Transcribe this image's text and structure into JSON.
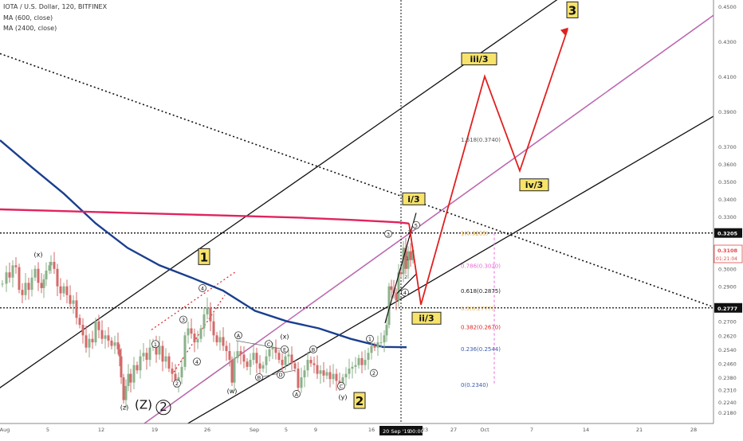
{
  "header": {
    "symbol_line": "IOTA / U.S. Dollar, 120, BITFINEX",
    "ma1": "MA (600, close)",
    "ma2": "MA (2400, close)"
  },
  "colors": {
    "ma600": "#1a3f8f",
    "ma2400": "#e0245e",
    "projection": "#e02020",
    "candle_up": "#8ab18a",
    "candle_down": "#d36a6a",
    "fib_pink": "#e86ad6",
    "label_bg": "#f7e36a"
  },
  "chart_data": {
    "type": "candlestick",
    "title": "IOTA / U.S. Dollar, 120, BITFINEX",
    "ylim": [
      0.214,
      0.457
    ],
    "y_ticks": [
      "0.4500",
      "0.4300",
      "0.4100",
      "0.3900",
      "0.3700",
      "0.3600",
      "0.3500",
      "0.3400",
      "0.3300",
      "0.3205",
      "0.3108",
      "0.3000",
      "0.2900",
      "0.2777",
      "0.2700",
      "0.2620",
      "0.2540",
      "0.2460",
      "0.2380",
      "0.2310",
      "0.2240",
      "0.2180"
    ],
    "x_ticks": [
      "Aug",
      "5",
      "12",
      "19",
      "26",
      "Sep",
      "5",
      "9",
      "16",
      "20 Sep '19",
      "00:00",
      "23",
      "27",
      "Oct",
      "7",
      "14",
      "21",
      "28"
    ],
    "price_labels": {
      "resistance": "0.3205",
      "current": "0.3108",
      "countdown": "01:21:04",
      "support": "0.2777"
    },
    "price_path": [
      [
        3,
        0.2915
      ],
      [
        8,
        0.298
      ],
      [
        12,
        0.295
      ],
      [
        16,
        0.302
      ],
      [
        20,
        0.301
      ],
      [
        24,
        0.288
      ],
      [
        28,
        0.285
      ],
      [
        32,
        0.292
      ],
      [
        36,
        0.288
      ],
      [
        40,
        0.295
      ],
      [
        44,
        0.3
      ],
      [
        48,
        0.292
      ],
      [
        52,
        0.289
      ],
      [
        55,
        0.294
      ],
      [
        58,
        0.299
      ],
      [
        62,
        0.302
      ],
      [
        64,
        0.304
      ],
      [
        68,
        0.3
      ],
      [
        72,
        0.29
      ],
      [
        76,
        0.286
      ],
      [
        80,
        0.29
      ],
      [
        84,
        0.285
      ],
      [
        88,
        0.28
      ],
      [
        92,
        0.282
      ],
      [
        96,
        0.272
      ],
      [
        100,
        0.268
      ],
      [
        104,
        0.262
      ],
      [
        108,
        0.255
      ],
      [
        112,
        0.26
      ],
      [
        116,
        0.258
      ],
      [
        120,
        0.27
      ],
      [
        124,
        0.265
      ],
      [
        128,
        0.26
      ],
      [
        132,
        0.262
      ],
      [
        136,
        0.259
      ],
      [
        140,
        0.256
      ],
      [
        144,
        0.258
      ],
      [
        148,
        0.254
      ],
      [
        150,
        0.25
      ],
      [
        152,
        0.238
      ],
      [
        155,
        0.225
      ],
      [
        158,
        0.233
      ],
      [
        161,
        0.24
      ],
      [
        164,
        0.235
      ],
      [
        168,
        0.245
      ],
      [
        172,
        0.242
      ],
      [
        176,
        0.25
      ],
      [
        180,
        0.252
      ],
      [
        184,
        0.248
      ],
      [
        188,
        0.255
      ],
      [
        192,
        0.258
      ],
      [
        196,
        0.251
      ],
      [
        200,
        0.256
      ],
      [
        204,
        0.247
      ],
      [
        208,
        0.25
      ],
      [
        212,
        0.243
      ],
      [
        216,
        0.24
      ],
      [
        220,
        0.235
      ],
      [
        224,
        0.238
      ],
      [
        228,
        0.244
      ],
      [
        232,
        0.262
      ],
      [
        236,
        0.266
      ],
      [
        240,
        0.263
      ],
      [
        244,
        0.258
      ],
      [
        248,
        0.26
      ],
      [
        252,
        0.266
      ],
      [
        256,
        0.274
      ],
      [
        260,
        0.278
      ],
      [
        264,
        0.27
      ],
      [
        268,
        0.262
      ],
      [
        272,
        0.258
      ],
      [
        276,
        0.261
      ],
      [
        280,
        0.256
      ],
      [
        284,
        0.253
      ],
      [
        288,
        0.248
      ],
      [
        291,
        0.235
      ],
      [
        294,
        0.249
      ],
      [
        298,
        0.253
      ],
      [
        302,
        0.251
      ],
      [
        306,
        0.247
      ],
      [
        310,
        0.244
      ],
      [
        314,
        0.248
      ],
      [
        318,
        0.252
      ],
      [
        322,
        0.246
      ],
      [
        326,
        0.243
      ],
      [
        330,
        0.245
      ],
      [
        334,
        0.25
      ],
      [
        338,
        0.254
      ],
      [
        342,
        0.255
      ],
      [
        346,
        0.252
      ],
      [
        350,
        0.248
      ],
      [
        354,
        0.245
      ],
      [
        358,
        0.25
      ],
      [
        362,
        0.251
      ],
      [
        366,
        0.246
      ],
      [
        370,
        0.243
      ],
      [
        374,
        0.232
      ],
      [
        378,
        0.238
      ],
      [
        382,
        0.242
      ],
      [
        386,
        0.248
      ],
      [
        390,
        0.246
      ],
      [
        394,
        0.245
      ],
      [
        398,
        0.24
      ],
      [
        402,
        0.242
      ],
      [
        406,
        0.239
      ],
      [
        410,
        0.241
      ],
      [
        414,
        0.237
      ],
      [
        418,
        0.24
      ],
      [
        422,
        0.236
      ],
      [
        426,
        0.234
      ],
      [
        430,
        0.238
      ],
      [
        434,
        0.24
      ],
      [
        438,
        0.243
      ],
      [
        442,
        0.244
      ],
      [
        446,
        0.245
      ],
      [
        450,
        0.249
      ],
      [
        454,
        0.245
      ],
      [
        458,
        0.248
      ],
      [
        462,
        0.252
      ],
      [
        466,
        0.256
      ],
      [
        470,
        0.255
      ],
      [
        474,
        0.258
      ],
      [
        478,
        0.258
      ],
      [
        482,
        0.262
      ],
      [
        485,
        0.268
      ],
      [
        488,
        0.29
      ],
      [
        491,
        0.288
      ],
      [
        494,
        0.286
      ],
      [
        497,
        0.282
      ],
      [
        500,
        0.298
      ],
      [
        503,
        0.297
      ],
      [
        506,
        0.312
      ],
      [
        509,
        0.3
      ],
      [
        512,
        0.31
      ],
      [
        515,
        0.305
      ],
      [
        518,
        0.3108
      ]
    ],
    "series": [
      {
        "name": "MA (600, close)",
        "points": [
          [
            0,
            0.3735
          ],
          [
            40,
            0.358
          ],
          [
            80,
            0.343
          ],
          [
            120,
            0.326
          ],
          [
            160,
            0.312
          ],
          [
            200,
            0.302
          ],
          [
            240,
            0.295
          ],
          [
            280,
            0.2875
          ],
          [
            320,
            0.276
          ],
          [
            360,
            0.27
          ],
          [
            400,
            0.266
          ],
          [
            440,
            0.26
          ],
          [
            480,
            0.2554
          ],
          [
            510,
            0.2552
          ]
        ]
      },
      {
        "name": "MA (2400, close)",
        "points": [
          [
            0,
            0.334
          ],
          [
            80,
            0.333
          ],
          [
            160,
            0.332
          ],
          [
            240,
            0.331
          ],
          [
            320,
            0.33
          ],
          [
            380,
            0.3292
          ],
          [
            440,
            0.328
          ],
          [
            500,
            0.3266
          ],
          [
            513,
            0.3259
          ]
        ]
      }
    ],
    "projection_path": [
      [
        513,
        0.326
      ],
      [
        528,
        0.2795
      ],
      [
        608,
        0.41
      ],
      [
        652,
        0.356
      ],
      [
        712,
        0.437
      ]
    ],
    "trendlines": [
      {
        "x1": -5,
        "y1": 0.2305,
        "x2": 712,
        "y2": 0.458
      },
      {
        "x1": 222,
        "y1": 0.208,
        "x2": 898,
        "y2": 0.388
      },
      {
        "x1": 176,
        "y1": 0.21,
        "x2": 932,
        "y2": 0.457
      }
    ],
    "dotted_lines": [
      {
        "x1": 0,
        "y1": 0.423,
        "x2": 898,
        "y2": 0.2777
      },
      {
        "x1": 190,
        "y1": 0.2652,
        "x2": 296,
        "y2": 0.2985
      },
      {
        "x1": 218,
        "y1": 0.241,
        "x2": 282,
        "y2": 0.285
      }
    ],
    "horizontal_levels": [
      0.3205,
      0.2777
    ],
    "fib_levels": [
      {
        "label": "1.618(0.3740)",
        "value": 0.374,
        "color": "#555555"
      },
      {
        "label": "1(0.3205)",
        "value": 0.3205,
        "color": "#e0a020"
      },
      {
        "label": "0.786(0.3020)",
        "value": 0.302,
        "color": "#e86ad6"
      },
      {
        "label": "0.618(0.2875)",
        "value": 0.2875,
        "color": "#222222"
      },
      {
        "label": "0.5(0.2777)",
        "value": 0.2777,
        "color": "#e0a020"
      },
      {
        "label": "0.382(0.2670)",
        "value": 0.267,
        "color": "#e02020"
      },
      {
        "label": "0.236(0.2544)",
        "value": 0.2544,
        "color": "#3a5bb0"
      },
      {
        "label": "0(0.2340)",
        "value": 0.234,
        "color": "#3a5bb0"
      }
    ],
    "wave_labels_boxed": [
      {
        "text": "1",
        "x": 256,
        "y": 0.307
      },
      {
        "text": "2",
        "x": 451,
        "y": 0.2248
      },
      {
        "text": "3",
        "x": 718,
        "y": 0.448
      },
      {
        "text": "i/3",
        "x": 519,
        "y": 0.34
      },
      {
        "text": "ii/3",
        "x": 535,
        "y": 0.2718
      },
      {
        "text": "iii/3",
        "x": 601,
        "y": 0.42
      },
      {
        "text": "iv/3",
        "x": 670,
        "y": 0.348
      }
    ],
    "wave_labels": [
      {
        "text": "(x)",
        "x": 48,
        "y": 0.307
      },
      {
        "text": "(z)",
        "x": 156,
        "y": 0.2195
      },
      {
        "text": "(Z)",
        "x": 180,
        "y": 0.22
      },
      {
        "text": "2",
        "x": 205,
        "y": 0.219
      },
      {
        "text": "(w)",
        "x": 291,
        "y": 0.229
      },
      {
        "text": "(x)",
        "x": 357,
        "y": 0.26
      },
      {
        "text": "(y)",
        "x": 430,
        "y": 0.2255
      }
    ],
    "circle_labels": [
      {
        "text": "4",
        "x": 254,
        "y": 0.289
      },
      {
        "text": "3",
        "x": 230,
        "y": 0.271
      },
      {
        "text": "1",
        "x": 195,
        "y": 0.257
      },
      {
        "text": "4",
        "x": 247,
        "y": 0.247
      },
      {
        "text": "2",
        "x": 222,
        "y": 0.2345
      },
      {
        "text": "A",
        "x": 299,
        "y": 0.262
      },
      {
        "text": "C",
        "x": 337,
        "y": 0.257
      },
      {
        "text": "E",
        "x": 357,
        "y": 0.254
      },
      {
        "text": "B",
        "x": 325,
        "y": 0.238
      },
      {
        "text": "D",
        "x": 352,
        "y": 0.2395
      },
      {
        "text": "A",
        "x": 372,
        "y": 0.2285
      },
      {
        "text": "B",
        "x": 393,
        "y": 0.254
      },
      {
        "text": "C",
        "x": 428,
        "y": 0.233
      },
      {
        "text": "1",
        "x": 464,
        "y": 0.26
      },
      {
        "text": "2",
        "x": 469,
        "y": 0.2405
      },
      {
        "text": "3",
        "x": 487,
        "y": 0.32
      },
      {
        "text": "4",
        "x": 508,
        "y": 0.2865
      },
      {
        "text": "5",
        "x": 522,
        "y": 0.325
      }
    ],
    "subwave_labels": [
      {
        "text": "1",
        "x": 511,
        "y": 0.305
      },
      {
        "text": "2",
        "x": 509,
        "y": 0.2945
      },
      {
        "text": "3",
        "x": 513,
        "y": 0.32
      }
    ]
  }
}
